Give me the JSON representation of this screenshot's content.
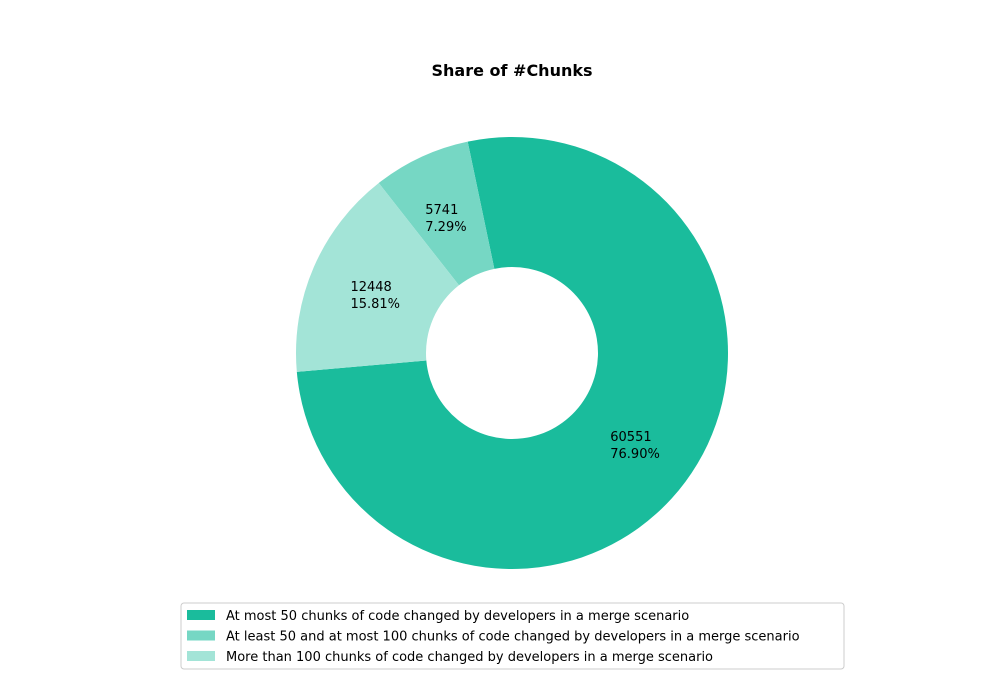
{
  "chart_data": {
    "type": "pie",
    "variant": "donut",
    "title": "Share of #Chunks",
    "slices": [
      {
        "label": "At most 50 chunks of code changed by developers in a merge scenario",
        "value": 60551,
        "percent": "76.90%",
        "color": "#1abc9c"
      },
      {
        "label": "At least 50 and at most 100 chunks of code changed by developers in a merge scenario",
        "value": 5741,
        "percent": "7.29%",
        "color": "#76d7c4"
      },
      {
        "label": "More than 100 chunks of code changed by developers in a merge scenario",
        "value": 12448,
        "percent": "15.81%",
        "color": "#a3e4d7"
      }
    ],
    "legend_position": "bottom"
  }
}
